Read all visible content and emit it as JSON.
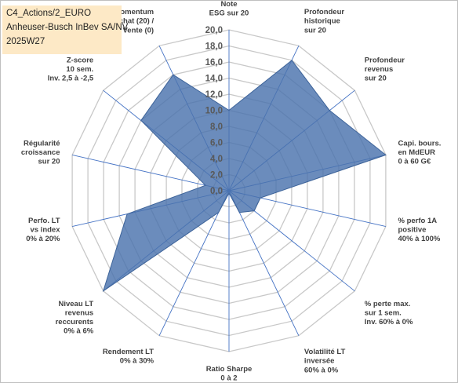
{
  "title_lines": [
    "C4_Actions/2_EURO",
    "Anheuser-Busch InBev SA/NV",
    "2025W27"
  ],
  "chart_data": {
    "type": "radar",
    "title": "",
    "range": [
      0,
      20
    ],
    "ticks": [
      "0,0",
      "2,0",
      "4,0",
      "6,0",
      "8,0",
      "10,0",
      "12,0",
      "14,0",
      "16,0",
      "18,0",
      "20,0"
    ],
    "axes": [
      {
        "label": [
          "Note",
          "ESG sur 20"
        ],
        "value": 10.0
      },
      {
        "label": [
          "Profondeur",
          "historique",
          "sur 20"
        ],
        "value": 18.0
      },
      {
        "label": [
          "Profondeur",
          "revenus",
          "sur 20"
        ],
        "value": 16.0
      },
      {
        "label": [
          "Capi. bours.",
          "en MdEUR",
          "0 à 60 G€"
        ],
        "value": 20.0
      },
      {
        "label": [
          "% perfo 1A",
          "positive",
          "40% à 100%"
        ],
        "value": 4.0
      },
      {
        "label": [
          "% perte max.",
          "sur 1 sem.",
          "Inv. 60% à 0%"
        ],
        "value": 4.0
      },
      {
        "label": [
          "Volatilité LT",
          "inversée",
          "60% à 0%"
        ],
        "value": 3.0
      },
      {
        "label": [
          "Ratio Sharpe",
          "0 à 2"
        ],
        "value": 0.3
      },
      {
        "label": [
          "Rendement LT",
          "0% à 30%"
        ],
        "value": 3.0
      },
      {
        "label": [
          "Niveau LT",
          "revenus",
          "reccurents",
          "0% à 6%"
        ],
        "value": 20.0
      },
      {
        "label": [
          "Perfo. LT",
          "vs index",
          "0% à 20%"
        ],
        "value": 13.0
      },
      {
        "label": [
          "Régularité",
          "croissance",
          "sur 20"
        ],
        "value": 3.0
      },
      {
        "label": [
          "Z-score",
          "10 sem.",
          "Inv. 2,5 à -2,5"
        ],
        "value": 14.0
      },
      {
        "label": [
          "Momentum",
          "Achat (20) /",
          "Vente (0)"
        ],
        "value": 16.0
      }
    ],
    "colors": {
      "fill": "#4a73ad",
      "grid": "#c8c8c8",
      "spoke": "#4472c4"
    },
    "grid": true,
    "legend": "none"
  }
}
